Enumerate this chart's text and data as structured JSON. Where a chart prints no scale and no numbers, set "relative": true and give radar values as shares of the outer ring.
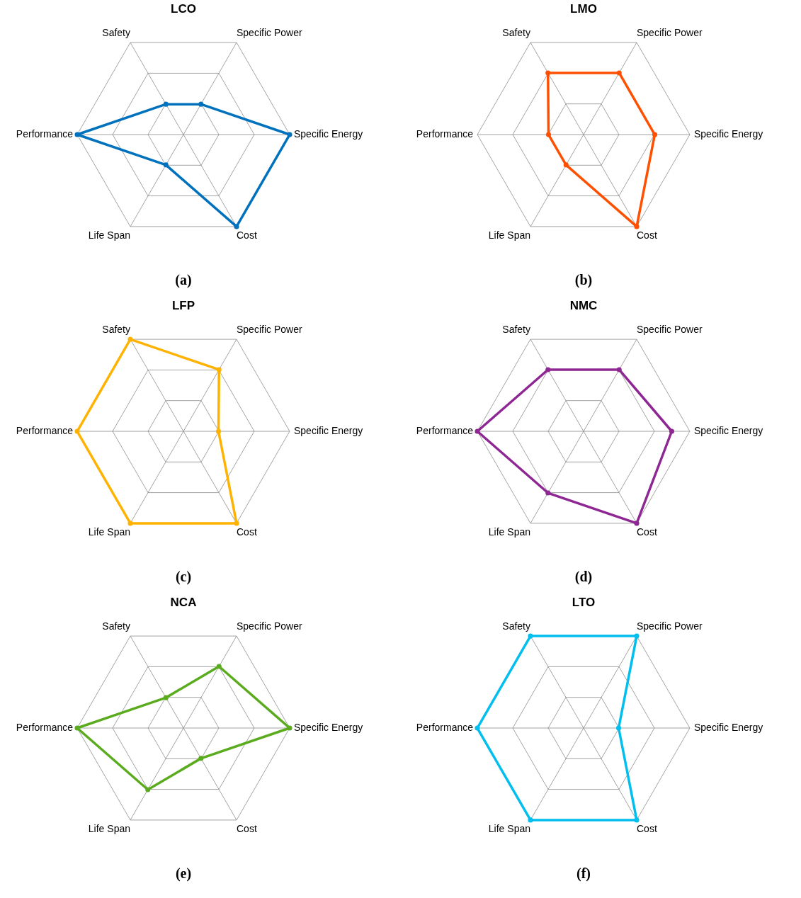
{
  "chart_data": [
    {
      "type": "radar",
      "title": "LCO",
      "relative": true,
      "grid": true,
      "marker": "circle",
      "line_style": "solid",
      "categories": [
        "Specific Power",
        "Specific Energy",
        "Cost",
        "Life Span",
        "Performance",
        "Safety"
      ],
      "series": [
        {
          "color": "#0072bd",
          "values": [
            0.33,
            1,
            1,
            0.33,
            1,
            0.33
          ]
        }
      ],
      "annotations": [
        "(a)"
      ]
    },
    {
      "type": "radar",
      "title": "LMO",
      "relative": true,
      "grid": true,
      "marker": "circle",
      "line_style": "solid",
      "categories": [
        "Specific Power",
        "Specific Energy",
        "Cost",
        "Life Span",
        "Performance",
        "Safety"
      ],
      "series": [
        {
          "color": "#fe5000",
          "values": [
            0.67,
            0.67,
            1,
            0.33,
            0.33,
            0.67
          ]
        }
      ],
      "annotations": [
        "(b)"
      ]
    },
    {
      "type": "radar",
      "title": "LFP",
      "relative": true,
      "grid": true,
      "marker": "circle",
      "line_style": "solid",
      "categories": [
        "Specific Power",
        "Specific Energy",
        "Cost",
        "Life Span",
        "Performance",
        "Safety"
      ],
      "series": [
        {
          "color": "#ffb300",
          "values": [
            0.67,
            0.33,
            1,
            1,
            1,
            1
          ]
        }
      ],
      "annotations": [
        "(c)"
      ]
    },
    {
      "type": "radar",
      "title": "NMC",
      "relative": true,
      "grid": true,
      "marker": "circle",
      "line_style": "solid",
      "categories": [
        "Specific Power",
        "Specific Energy",
        "Cost",
        "Life Span",
        "Performance",
        "Safety"
      ],
      "series": [
        {
          "color": "#8e2793",
          "values": [
            0.67,
            0.83,
            1,
            0.67,
            1,
            0.67
          ]
        }
      ],
      "annotations": [
        "(d)"
      ]
    },
    {
      "type": "radar",
      "title": "NCA",
      "relative": true,
      "grid": true,
      "marker": "circle",
      "line_style": "solid",
      "categories": [
        "Specific Power",
        "Specific Energy",
        "Cost",
        "Life Span",
        "Performance",
        "Safety"
      ],
      "series": [
        {
          "color": "#5aab1e",
          "values": [
            0.67,
            1,
            0.33,
            0.67,
            1,
            0.33
          ]
        }
      ],
      "annotations": [
        "(e)"
      ]
    },
    {
      "type": "radar",
      "title": "LTO",
      "relative": true,
      "grid": true,
      "marker": "circle",
      "line_style": "solid",
      "categories": [
        "Specific Power",
        "Specific Energy",
        "Cost",
        "Life Span",
        "Performance",
        "Safety"
      ],
      "series": [
        {
          "color": "#00bfee",
          "values": [
            1,
            0.33,
            1,
            1,
            1,
            1
          ]
        }
      ],
      "annotations": [
        "(f)"
      ]
    }
  ]
}
